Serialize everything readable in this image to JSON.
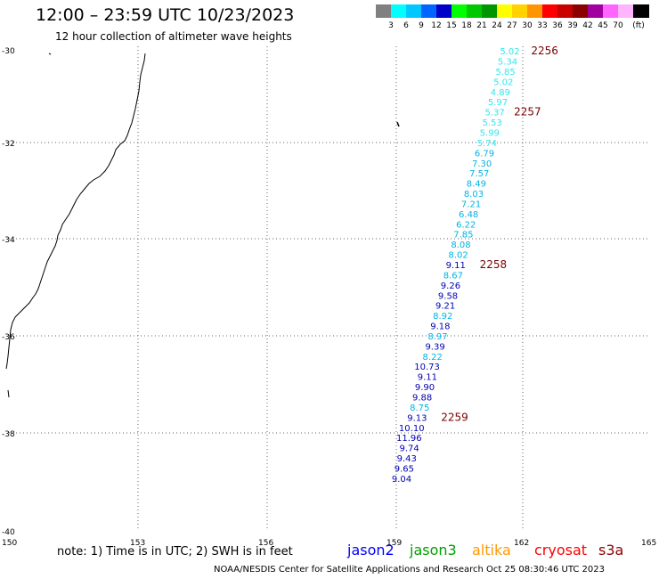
{
  "header": {
    "title": "12:00 – 23:59 UTC 10/23/2023",
    "subtitle": "12 hour collection of altimeter wave heights"
  },
  "legend": {
    "unit": "(ft)",
    "items": [
      {
        "color": "#808080",
        "label": ""
      },
      {
        "color": "#00ffff",
        "label": "3"
      },
      {
        "color": "#00c8ff",
        "label": "6"
      },
      {
        "color": "#0064ff",
        "label": "9"
      },
      {
        "color": "#0000c8",
        "label": "12"
      },
      {
        "color": "#00ff00",
        "label": "15"
      },
      {
        "color": "#00c800",
        "label": "18"
      },
      {
        "color": "#009600",
        "label": "21"
      },
      {
        "color": "#ffff00",
        "label": "24"
      },
      {
        "color": "#ffd200",
        "label": "27"
      },
      {
        "color": "#ff9600",
        "label": "30"
      },
      {
        "color": "#ff0000",
        "label": "33"
      },
      {
        "color": "#c80000",
        "label": "36"
      },
      {
        "color": "#8b0000",
        "label": "39"
      },
      {
        "color": "#a000a0",
        "label": "42"
      },
      {
        "color": "#ff64ff",
        "label": "45"
      },
      {
        "color": "#ffb4ff",
        "label": "70"
      },
      {
        "color": "#000000",
        "label": ""
      }
    ]
  },
  "map": {
    "lat_labels": [
      "-30",
      "-32",
      "-34",
      "-36",
      "-38",
      "-40"
    ],
    "lon_labels": [
      "150",
      "153",
      "156",
      "159",
      "162",
      "165"
    ]
  },
  "observations": [
    {
      "lat": -30.02,
      "lon": 161.9,
      "swh": "5.02",
      "color": "#33e6ee"
    },
    {
      "lat": -30.23,
      "lon": 161.85,
      "swh": "5.34",
      "color": "#33e6ee"
    },
    {
      "lat": -30.44,
      "lon": 161.8,
      "swh": "5.85",
      "color": "#33e6ee"
    },
    {
      "lat": -30.65,
      "lon": 161.75,
      "swh": "5.02",
      "color": "#33e6ee"
    },
    {
      "lat": -30.86,
      "lon": 161.68,
      "swh": "4.89",
      "color": "#33e6ee"
    },
    {
      "lat": -31.07,
      "lon": 161.62,
      "swh": "5.97",
      "color": "#33e6ee"
    },
    {
      "lat": -31.28,
      "lon": 161.55,
      "swh": "5.37",
      "color": "#33e6ee"
    },
    {
      "lat": -31.49,
      "lon": 161.49,
      "swh": "5.53",
      "color": "#33e6ee"
    },
    {
      "lat": -31.7,
      "lon": 161.43,
      "swh": "5.99",
      "color": "#33e6ee"
    },
    {
      "lat": -31.91,
      "lon": 161.37,
      "swh": "5.74",
      "color": "#33e6ee"
    },
    {
      "lat": -32.12,
      "lon": 161.31,
      "swh": "6.79",
      "color": "#00b4e6"
    },
    {
      "lat": -32.33,
      "lon": 161.25,
      "swh": "7.30",
      "color": "#00b4e6"
    },
    {
      "lat": -32.54,
      "lon": 161.19,
      "swh": "7.57",
      "color": "#00b4e6"
    },
    {
      "lat": -32.75,
      "lon": 161.12,
      "swh": "8.49",
      "color": "#00b4e6"
    },
    {
      "lat": -32.96,
      "lon": 161.06,
      "swh": "8.03",
      "color": "#00b4e6"
    },
    {
      "lat": -33.17,
      "lon": 161.0,
      "swh": "7.21",
      "color": "#00b4e6"
    },
    {
      "lat": -33.38,
      "lon": 160.94,
      "swh": "6.48",
      "color": "#00b4e6"
    },
    {
      "lat": -33.59,
      "lon": 160.88,
      "swh": "6.22",
      "color": "#00b4e6"
    },
    {
      "lat": -33.8,
      "lon": 160.82,
      "swh": "7.85",
      "color": "#00b4e6"
    },
    {
      "lat": -34.01,
      "lon": 160.76,
      "swh": "8.08",
      "color": "#00b4e6"
    },
    {
      "lat": -34.22,
      "lon": 160.7,
      "swh": "8.02",
      "color": "#00b4e6"
    },
    {
      "lat": -34.43,
      "lon": 160.64,
      "swh": "9.11",
      "color": "#0000b4"
    },
    {
      "lat": -34.64,
      "lon": 160.58,
      "swh": "8.67",
      "color": "#00b4e6"
    },
    {
      "lat": -34.85,
      "lon": 160.52,
      "swh": "9.26",
      "color": "#0000b4"
    },
    {
      "lat": -35.06,
      "lon": 160.46,
      "swh": "9.58",
      "color": "#0000b4"
    },
    {
      "lat": -35.27,
      "lon": 160.4,
      "swh": "9.21",
      "color": "#0000b4"
    },
    {
      "lat": -35.48,
      "lon": 160.34,
      "swh": "8.92",
      "color": "#00b4e6"
    },
    {
      "lat": -35.69,
      "lon": 160.28,
      "swh": "9.18",
      "color": "#0000b4"
    },
    {
      "lat": -35.9,
      "lon": 160.22,
      "swh": "8.97",
      "color": "#00b4e6"
    },
    {
      "lat": -36.11,
      "lon": 160.16,
      "swh": "9.39",
      "color": "#0000b4"
    },
    {
      "lat": -36.32,
      "lon": 160.1,
      "swh": "8.22",
      "color": "#00b4e6"
    },
    {
      "lat": -36.53,
      "lon": 160.04,
      "swh": "10.73",
      "color": "#0000b4"
    },
    {
      "lat": -36.74,
      "lon": 159.98,
      "swh": "9.11",
      "color": "#0000b4"
    },
    {
      "lat": -36.95,
      "lon": 159.92,
      "swh": "9.90",
      "color": "#0000b4"
    },
    {
      "lat": -37.16,
      "lon": 159.86,
      "swh": "9.88",
      "color": "#0000b4"
    },
    {
      "lat": -37.37,
      "lon": 159.8,
      "swh": "8.75",
      "color": "#00b4e6"
    },
    {
      "lat": -37.58,
      "lon": 159.74,
      "swh": "9.13",
      "color": "#0000b4"
    },
    {
      "lat": -37.79,
      "lon": 159.68,
      "swh": "10.10",
      "color": "#0000b4"
    },
    {
      "lat": -38.0,
      "lon": 159.62,
      "swh": "11.96",
      "color": "#0000b4"
    },
    {
      "lat": -38.21,
      "lon": 159.56,
      "swh": "9.74",
      "color": "#0000b4"
    },
    {
      "lat": -38.42,
      "lon": 159.5,
      "swh": "9.43",
      "color": "#0000b4"
    },
    {
      "lat": -38.63,
      "lon": 159.44,
      "swh": "9.65",
      "color": "#0000b4"
    },
    {
      "lat": -38.84,
      "lon": 159.38,
      "swh": "9.04",
      "color": "#0000b4"
    }
  ],
  "time_markers": [
    {
      "lat": -30.02,
      "lon": 162.8,
      "label": "2256"
    },
    {
      "lat": -31.28,
      "lon": 162.4,
      "label": "2257"
    },
    {
      "lat": -34.43,
      "lon": 161.6,
      "label": "2258"
    },
    {
      "lat": -37.58,
      "lon": 160.7,
      "label": "2259"
    }
  ],
  "footer": {
    "note": "note: 1) Time is in UTC; 2) SWH is in feet",
    "satellites": [
      {
        "name": "jason2",
        "color": "#0000ff"
      },
      {
        "name": "jason3",
        "color": "#00a000"
      },
      {
        "name": "altika",
        "color": "#ff9900"
      },
      {
        "name": "cryosat",
        "color": "#ff0000"
      },
      {
        "name": "s3a",
        "color": "#8b0000"
      }
    ],
    "credit": "NOAA/NESDIS Center for Satellite Applications and Research     Oct 25 08:30:46 UTC 2023"
  }
}
